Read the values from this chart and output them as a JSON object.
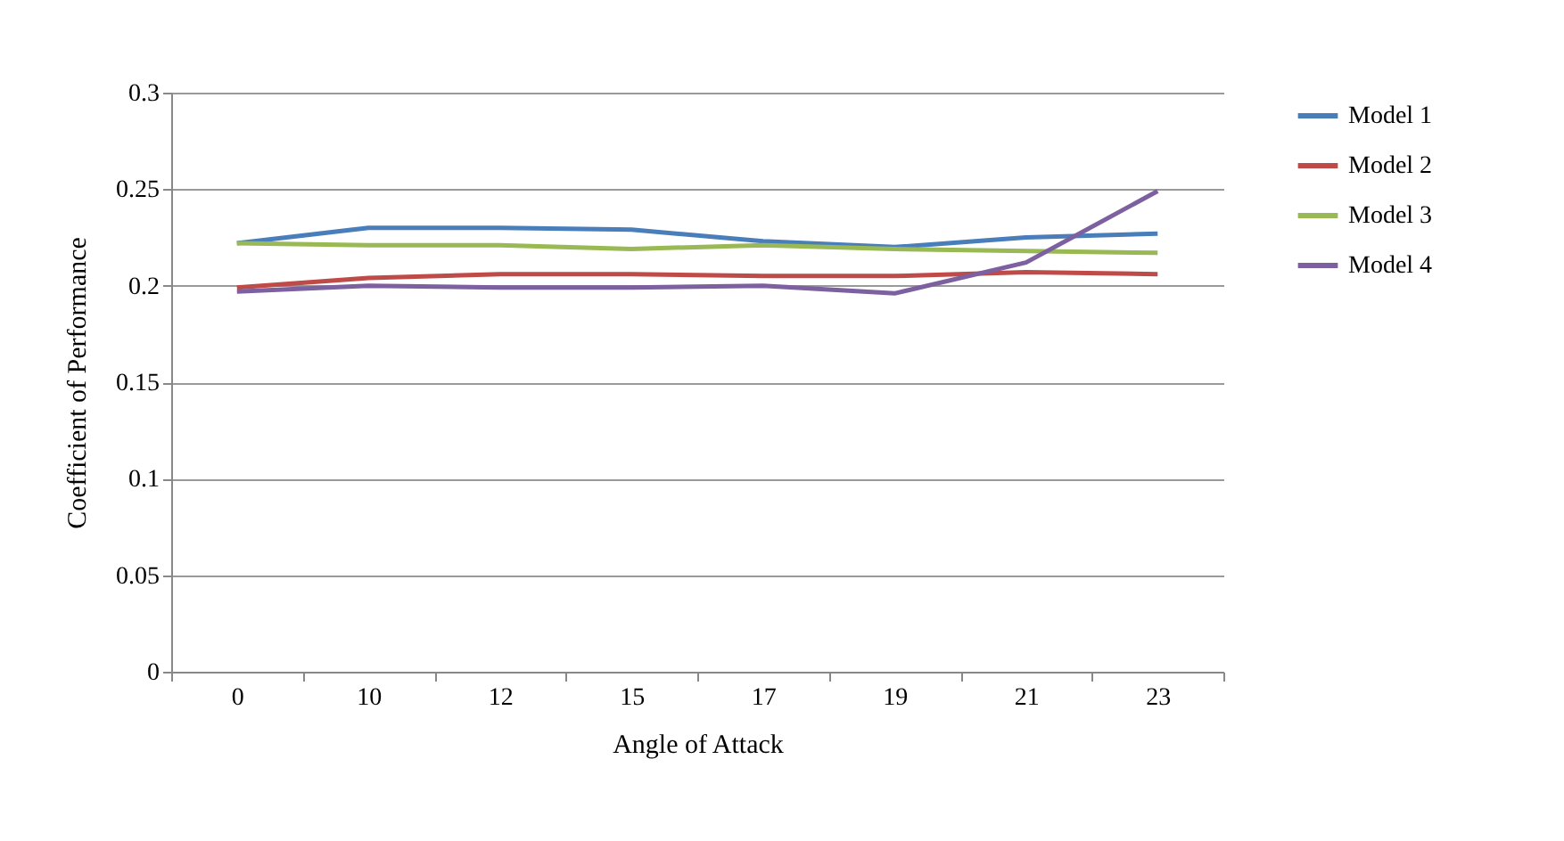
{
  "chart_data": {
    "type": "line",
    "xlabel": "Angle of Attack",
    "ylabel": "Coefficient of Performance",
    "categories": [
      "0",
      "10",
      "12",
      "15",
      "17",
      "19",
      "21",
      "23"
    ],
    "ylim": [
      0,
      0.3
    ],
    "yticks": [
      0,
      0.05,
      0.1,
      0.15,
      0.2,
      0.25,
      0.3
    ],
    "grid": "y",
    "legend": "right",
    "marker": "none",
    "series": [
      {
        "name": "Model 1",
        "color": "#4a7ebb",
        "values": [
          0.222,
          0.23,
          0.23,
          0.229,
          0.223,
          0.22,
          0.225,
          0.227
        ]
      },
      {
        "name": "Model 2",
        "color": "#be4b48",
        "values": [
          0.199,
          0.204,
          0.206,
          0.206,
          0.205,
          0.205,
          0.207,
          0.206
        ]
      },
      {
        "name": "Model 3",
        "color": "#98b954",
        "values": [
          0.222,
          0.221,
          0.221,
          0.219,
          0.221,
          0.219,
          0.218,
          0.217
        ]
      },
      {
        "name": "Model 4",
        "color": "#7d60a0",
        "values": [
          0.197,
          0.2,
          0.199,
          0.199,
          0.2,
          0.196,
          0.212,
          0.249
        ]
      }
    ]
  }
}
